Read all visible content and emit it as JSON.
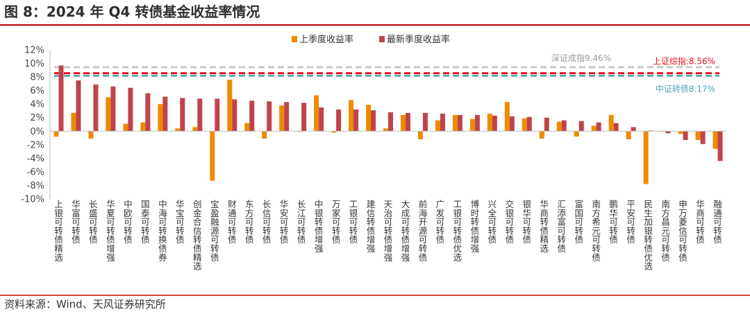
{
  "title": "图 8：2024 年 Q4 转债基金收益率情况",
  "source": "资料来源：Wind、天风证券研究所",
  "colors": {
    "accent_line": "#c00000",
    "prev": "#ed8b00",
    "latest": "#c0434b",
    "ref_szcz": "#c8c8c8",
    "ref_shzz": "#e8121a",
    "ref_zzzz": "#4ba3b3"
  },
  "chart_data": {
    "type": "bar",
    "categories": [
      "上银可转债精选",
      "华富可转债",
      "长盛可转债",
      "华夏可转债增强",
      "中欧可转债",
      "国泰可转债",
      "中海可转换债券",
      "华宝可转债",
      "创金合信转债精选",
      "宝盈融源可转债",
      "财通可转债",
      "东方可转债",
      "长信可转债",
      "华安可转债",
      "长江可转债",
      "中银转债增强",
      "万家可转债",
      "工银可转债",
      "建信转债增强",
      "天治可转债增强",
      "大成可转债增强",
      "前海开源可转债",
      "广发可转债",
      "工银可转债优选",
      "博时转债增强",
      "兴全可转债",
      "交银可转债",
      "银华可转债",
      "华商转债精选",
      "汇添富可转债",
      "富国可转债",
      "南方希元可转债",
      "鹏华可转债",
      "平安可转债",
      "民生加银转债优选",
      "南方昌元可转债",
      "申万菱信可转债",
      "华商可转债",
      "融通可转债"
    ],
    "series": [
      {
        "name": "上季度收益率",
        "values": [
          -0.8,
          2.7,
          -1.1,
          5.0,
          1.1,
          1.3,
          4.0,
          0.4,
          0.6,
          -7.3,
          7.6,
          1.2,
          -1.1,
          3.8,
          -0.1,
          5.3,
          -0.2,
          4.6,
          3.9,
          0.4,
          2.4,
          -1.2,
          1.6,
          2.4,
          1.8,
          2.6,
          4.3,
          1.9,
          -1.1,
          1.4,
          -0.8,
          0.8,
          2.4,
          -1.2,
          -7.8,
          0.0,
          -0.4,
          -1.3,
          -2.6
        ]
      },
      {
        "name": "最新季度收益率",
        "values": [
          9.7,
          7.5,
          6.9,
          6.6,
          6.4,
          5.6,
          5.1,
          4.9,
          4.8,
          4.8,
          4.7,
          4.5,
          4.4,
          4.3,
          4.2,
          3.5,
          3.2,
          3.2,
          3.1,
          2.8,
          2.7,
          2.7,
          2.6,
          2.4,
          2.4,
          2.3,
          2.2,
          2.1,
          2.0,
          1.6,
          1.5,
          1.3,
          1.2,
          0.6,
          0.1,
          -0.3,
          -1.3,
          -1.9,
          -4.4
        ]
      }
    ],
    "ylim": [
      -10,
      12
    ],
    "yticks": [
      "12%",
      "10%",
      "8%",
      "6%",
      "4%",
      "2%",
      "0%",
      "-2%",
      "-4%",
      "-6%",
      "-8%",
      "-10%"
    ],
    "reference_lines": [
      {
        "label": "深证成指9.46%",
        "value": 9.46
      },
      {
        "label": "上证综指:8.56%",
        "value": 8.56
      },
      {
        "label": "中证转债8.17%",
        "value": 8.17
      }
    ],
    "legend_position": "top-center",
    "grid": false
  }
}
